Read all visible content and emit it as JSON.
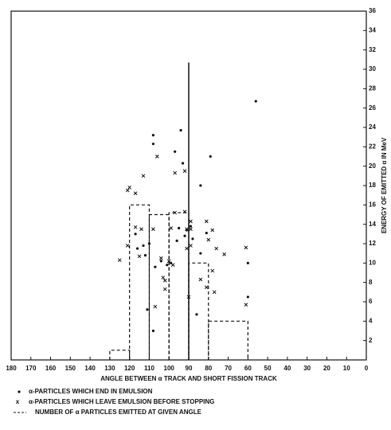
{
  "chart_data": {
    "type": "scatter",
    "x_label": "ANGLE BETWEEN α TRACK AND SHORT FISSION TRACK",
    "y_label": "ENERGY OF EMITTED α IN MeV",
    "xlim": [
      180,
      0
    ],
    "xticks": [
      180,
      170,
      160,
      150,
      140,
      130,
      120,
      110,
      100,
      90,
      80,
      70,
      60,
      50,
      40,
      30,
      20,
      10,
      0
    ],
    "ylim": [
      0,
      36
    ],
    "yticks": [
      2,
      4,
      6,
      8,
      10,
      12,
      14,
      16,
      18,
      20,
      22,
      24,
      26,
      28,
      30,
      32,
      34,
      36
    ],
    "series": [
      {
        "name": "α-PARTICLES WHICH END IN EMULSION",
        "marker": "dot",
        "color": "#111",
        "x": [
          108,
          108,
          94,
          56,
          97,
          93,
          79,
          84,
          110,
          113,
          116,
          112,
          104,
          107,
          101,
          96,
          91,
          92,
          88,
          89,
          81,
          84,
          86,
          108,
          111,
          99,
          60,
          60,
          117,
          95
        ],
        "values": [
          23.2,
          22.3,
          23.7,
          26.7,
          21.5,
          20.3,
          21,
          18,
          12,
          11.8,
          11.5,
          10.8,
          10.2,
          9.6,
          9.8,
          12.3,
          13.4,
          12.8,
          12.5,
          13.8,
          13.1,
          11,
          4.7,
          3,
          5.2,
          10,
          10,
          6.5,
          13,
          13.6
        ]
      },
      {
        "name": "α-PARTICLES WHICH LEAVE EMULSION BEFORE STOPPING",
        "marker": "x",
        "color": "#111",
        "x": [
          121,
          117,
          113,
          106,
          97,
          92,
          120,
          125,
          121,
          117,
          115,
          114,
          108,
          104,
          103,
          102,
          100,
          99,
          98,
          97,
          92,
          91,
          91,
          90,
          89,
          89,
          81,
          80,
          78,
          76,
          72,
          84,
          81,
          78,
          77,
          61,
          61,
          107,
          102,
          89
        ],
        "values": [
          17.5,
          17.2,
          19,
          21,
          19.3,
          19.5,
          17.8,
          10.3,
          11.8,
          13.7,
          10.7,
          13.5,
          13.5,
          10.5,
          8.5,
          8.2,
          10.2,
          13.6,
          9.8,
          15.2,
          15.3,
          13.5,
          11.5,
          6.5,
          14.3,
          13.5,
          14.3,
          12.4,
          13.4,
          11.5,
          10.9,
          8.3,
          7.5,
          9.2,
          7,
          11.6,
          5.7,
          5.5,
          7.3,
          11.8
        ]
      }
    ],
    "histogram": {
      "name": "NUMBER OF α PARTICLES EMITTED AT GIVEN ANGLE",
      "color": "#111",
      "bins": [
        130,
        120,
        110,
        100,
        90,
        80,
        60
      ],
      "values": [
        1,
        16,
        15,
        15.2,
        10,
        4
      ]
    },
    "reference_line": {
      "x": 90,
      "y": [
        0,
        30.7
      ]
    }
  }
}
